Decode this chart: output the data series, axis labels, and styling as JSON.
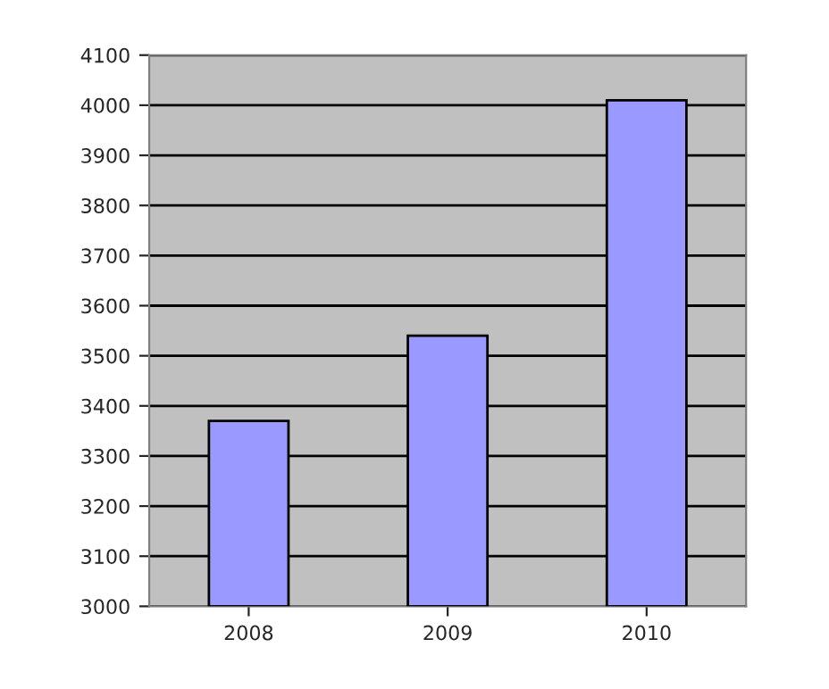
{
  "chart_data": {
    "type": "bar",
    "categories": [
      "2008",
      "2009",
      "2010"
    ],
    "values": [
      3370,
      3540,
      4010
    ],
    "color": "#9999ff",
    "ylim": [
      3000,
      4100
    ],
    "yticks": [
      3000,
      3100,
      3200,
      3300,
      3400,
      3500,
      3600,
      3700,
      3800,
      3900,
      4000,
      4100
    ],
    "grid": "y"
  }
}
